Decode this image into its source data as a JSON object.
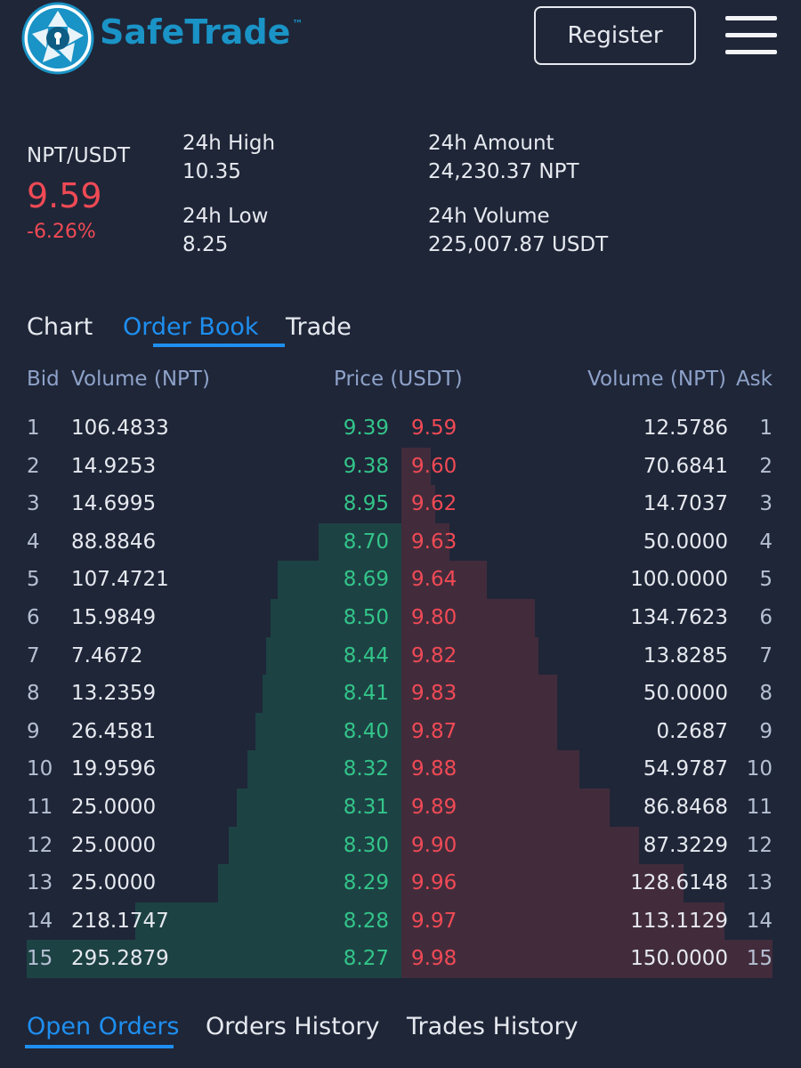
{
  "header": {
    "brand": "SafeTrade",
    "trademark": "™",
    "register_label": "Register",
    "logo_icon": "shield-lock-aperture-icon",
    "menu_icon": "hamburger-menu-icon",
    "brand_color": "#1a93c6"
  },
  "market": {
    "pair": "NPT/USDT",
    "last_price": "9.59",
    "change": "-6.26%",
    "high_label": "24h High",
    "high_value": "10.35",
    "low_label": "24h Low",
    "low_value": "8.25",
    "amount_label": "24h Amount",
    "amount_value": "24,230.37 NPT",
    "volume_label": "24h Volume",
    "volume_value": "225,007.87 USDT"
  },
  "tabs": [
    {
      "label": "Chart",
      "active": false
    },
    {
      "label": "Order Book",
      "active": true
    },
    {
      "label": "Trade",
      "active": false
    }
  ],
  "order_book": {
    "headers": {
      "bid": "Bid",
      "bid_volume": "Volume (NPT)",
      "price": "Price (USDT)",
      "ask_volume": "Volume (NPT)",
      "ask": "Ask"
    },
    "bid_color": "#33c489",
    "ask_color": "#f04a55",
    "rows": [
      {
        "n": "1",
        "bid_vol": "106.4833",
        "bid_price": "9.39",
        "ask_price": "9.59",
        "ask_vol": "12.5786",
        "bid_depth": 0.0,
        "ask_depth": 0.0
      },
      {
        "n": "2",
        "bid_vol": "14.9253",
        "bid_price": "9.38",
        "ask_price": "9.60",
        "ask_vol": "70.6841",
        "bid_depth": 0.0,
        "ask_depth": 0.08
      },
      {
        "n": "3",
        "bid_vol": "14.6995",
        "bid_price": "8.95",
        "ask_price": "9.62",
        "ask_vol": "14.7037",
        "bid_depth": 0.0,
        "ask_depth": 0.09
      },
      {
        "n": "4",
        "bid_vol": "88.8846",
        "bid_price": "8.70",
        "ask_price": "9.63",
        "ask_vol": "50.0000",
        "bid_depth": 0.22,
        "ask_depth": 0.13
      },
      {
        "n": "5",
        "bid_vol": "107.4721",
        "bid_price": "8.69",
        "ask_price": "9.64",
        "ask_vol": "100.0000",
        "bid_depth": 0.33,
        "ask_depth": 0.23
      },
      {
        "n": "6",
        "bid_vol": "15.9849",
        "bid_price": "8.50",
        "ask_price": "9.80",
        "ask_vol": "134.7623",
        "bid_depth": 0.35,
        "ask_depth": 0.36
      },
      {
        "n": "7",
        "bid_vol": "7.4672",
        "bid_price": "8.44",
        "ask_price": "9.82",
        "ask_vol": "13.8285",
        "bid_depth": 0.36,
        "ask_depth": 0.37
      },
      {
        "n": "8",
        "bid_vol": "13.2359",
        "bid_price": "8.41",
        "ask_price": "9.83",
        "ask_vol": "50.0000",
        "bid_depth": 0.37,
        "ask_depth": 0.42
      },
      {
        "n": "9",
        "bid_vol": "26.4581",
        "bid_price": "8.40",
        "ask_price": "9.87",
        "ask_vol": "0.2687",
        "bid_depth": 0.39,
        "ask_depth": 0.42
      },
      {
        "n": "10",
        "bid_vol": "19.9596",
        "bid_price": "8.32",
        "ask_price": "9.88",
        "ask_vol": "54.9787",
        "bid_depth": 0.41,
        "ask_depth": 0.48
      },
      {
        "n": "11",
        "bid_vol": "25.0000",
        "bid_price": "8.31",
        "ask_price": "9.89",
        "ask_vol": "86.8468",
        "bid_depth": 0.44,
        "ask_depth": 0.56
      },
      {
        "n": "12",
        "bid_vol": "25.0000",
        "bid_price": "8.30",
        "ask_price": "9.90",
        "ask_vol": "87.3229",
        "bid_depth": 0.46,
        "ask_depth": 0.64
      },
      {
        "n": "13",
        "bid_vol": "25.0000",
        "bid_price": "8.29",
        "ask_price": "9.96",
        "ask_vol": "128.6148",
        "bid_depth": 0.49,
        "ask_depth": 0.76
      },
      {
        "n": "14",
        "bid_vol": "218.1747",
        "bid_price": "8.28",
        "ask_price": "9.97",
        "ask_vol": "113.1129",
        "bid_depth": 0.71,
        "ask_depth": 0.87
      },
      {
        "n": "15",
        "bid_vol": "295.2879",
        "bid_price": "8.27",
        "ask_price": "9.98",
        "ask_vol": "150.0000",
        "bid_depth": 1.0,
        "ask_depth": 1.0
      }
    ]
  },
  "bottom_tabs": [
    {
      "label": "Open Orders",
      "active": true
    },
    {
      "label": "Orders History",
      "active": false
    },
    {
      "label": "Trades History",
      "active": false
    }
  ]
}
